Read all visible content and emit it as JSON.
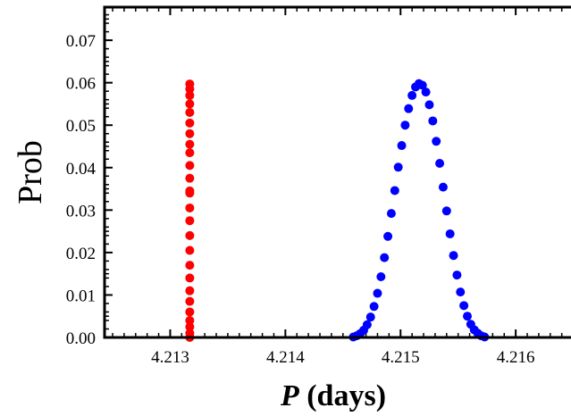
{
  "chart_data": {
    "type": "scatter",
    "xlabel": {
      "italic": "P",
      "rest": " (days)"
    },
    "ylabel": "Prob",
    "xlim": [
      4.21243,
      4.21648
    ],
    "ylim": [
      0,
      0.0778
    ],
    "x_ticks": [
      4.213,
      4.214,
      4.215,
      4.216
    ],
    "x_tick_labels": [
      "4.213",
      "4.214",
      "4.215",
      "4.216"
    ],
    "y_ticks": [
      0,
      0.01,
      0.02,
      0.03,
      0.04,
      0.05,
      0.06,
      0.07
    ],
    "y_tick_labels": [
      "0.00",
      "0.01",
      "0.02",
      "0.03",
      "0.04",
      "0.05",
      "0.06",
      "0.07"
    ],
    "grid": false,
    "series": [
      {
        "color": "#ff0000",
        "points": [
          [
            4.21317,
            0.0
          ],
          [
            4.21317,
            0.001
          ],
          [
            4.21317,
            0.0025
          ],
          [
            4.21317,
            0.004
          ],
          [
            4.21317,
            0.006
          ],
          [
            4.21317,
            0.0085
          ],
          [
            4.21317,
            0.011
          ],
          [
            4.21317,
            0.014
          ],
          [
            4.21317,
            0.017
          ],
          [
            4.21317,
            0.0205
          ],
          [
            4.21317,
            0.024
          ],
          [
            4.21317,
            0.0275
          ],
          [
            4.21317,
            0.0305
          ],
          [
            4.21317,
            0.034
          ],
          [
            4.21317,
            0.0345
          ],
          [
            4.21317,
            0.0375
          ],
          [
            4.21317,
            0.0405
          ],
          [
            4.21317,
            0.0435
          ],
          [
            4.21317,
            0.0455
          ],
          [
            4.21317,
            0.048
          ],
          [
            4.21317,
            0.0505
          ],
          [
            4.21317,
            0.053
          ],
          [
            4.21317,
            0.055
          ],
          [
            4.21317,
            0.057
          ],
          [
            4.21317,
            0.0585
          ],
          [
            4.21317,
            0.0597
          ]
        ]
      },
      {
        "color": "#0000ff",
        "points": [
          [
            4.21459,
            0.0001
          ],
          [
            4.21462,
            0.0004
          ],
          [
            4.21465,
            0.0009
          ],
          [
            4.21468,
            0.0017
          ],
          [
            4.21471,
            0.003
          ],
          [
            4.21474,
            0.0048
          ],
          [
            4.21477,
            0.0073
          ],
          [
            4.2148,
            0.0104
          ],
          [
            4.21483,
            0.0143
          ],
          [
            4.21486,
            0.0188
          ],
          [
            4.21489,
            0.0238
          ],
          [
            4.21492,
            0.0292
          ],
          [
            4.21495,
            0.0346
          ],
          [
            4.21498,
            0.0401
          ],
          [
            4.21501,
            0.0452
          ],
          [
            4.21504,
            0.05
          ],
          [
            4.21507,
            0.0539
          ],
          [
            4.2151,
            0.057
          ],
          [
            4.21513,
            0.059
          ],
          [
            4.21516,
            0.0598
          ],
          [
            4.21519,
            0.0594
          ],
          [
            4.21522,
            0.0578
          ],
          [
            4.21525,
            0.0548
          ],
          [
            4.21528,
            0.051
          ],
          [
            4.21531,
            0.0462
          ],
          [
            4.21534,
            0.041
          ],
          [
            4.21537,
            0.0354
          ],
          [
            4.2154,
            0.0298
          ],
          [
            4.21543,
            0.0244
          ],
          [
            4.21546,
            0.0193
          ],
          [
            4.21549,
            0.0147
          ],
          [
            4.21552,
            0.0107
          ],
          [
            4.21555,
            0.0075
          ],
          [
            4.21558,
            0.005
          ],
          [
            4.21561,
            0.0031
          ],
          [
            4.21564,
            0.0018
          ],
          [
            4.21567,
            0.001
          ],
          [
            4.2157,
            0.0004
          ],
          [
            4.21573,
            0.0001
          ]
        ]
      }
    ]
  }
}
